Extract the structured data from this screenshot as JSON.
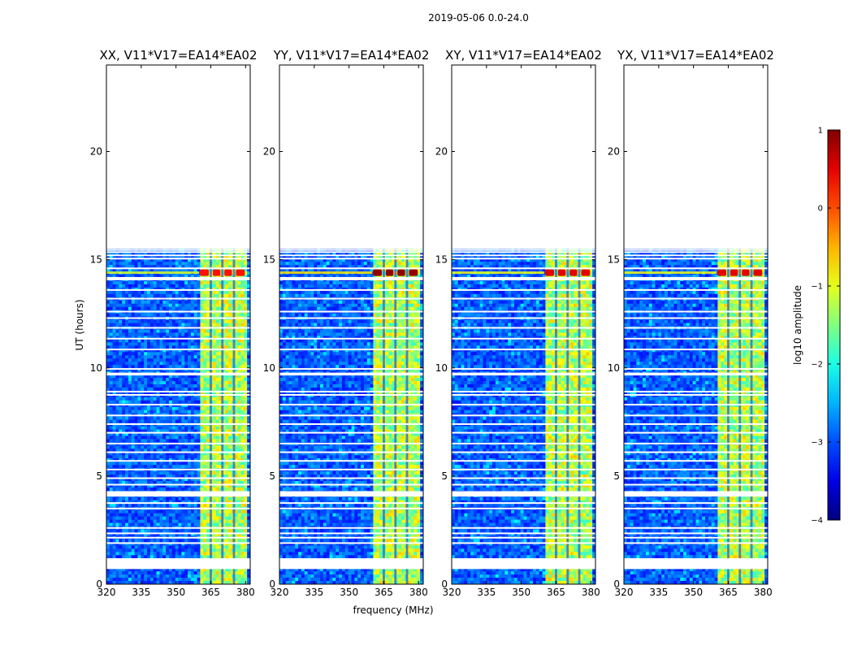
{
  "suptitle": "2019-05-06 0.0-24.0",
  "chart_data": {
    "type": "heatmap",
    "xlabel": "frequency (MHz)",
    "ylabel": "UT (hours)",
    "xlim": [
      320,
      382
    ],
    "ylim": [
      0,
      24
    ],
    "xticks": [
      "320",
      "335",
      "350",
      "365",
      "380"
    ],
    "xtick_values": [
      320,
      335,
      350,
      365,
      380
    ],
    "yticks": [
      "0",
      "5",
      "10",
      "15",
      "20"
    ],
    "ytick_values": [
      0,
      5,
      10,
      15,
      20
    ],
    "data_end_hour": 15.5,
    "gaps_hours": [
      [
        0.7,
        1.2
      ],
      [
        4.05,
        4.3
      ],
      [
        9.65,
        9.78
      ],
      [
        14.05,
        14.2
      ]
    ],
    "flag_hours": [
      1.9,
      2.15,
      2.35,
      2.6,
      3.5,
      3.75,
      4.6,
      4.9,
      5.3,
      5.7,
      6.1,
      6.5,
      7.0,
      7.4,
      7.8,
      8.3,
      8.75,
      8.9,
      9.95,
      10.85,
      11.35,
      11.85,
      12.3,
      12.6,
      13.2,
      13.6,
      14.6,
      15.05,
      15.2,
      15.35,
      15.45
    ],
    "rfi_band_mhz": [
      360,
      380
    ],
    "rfi_channels_mhz": [
      [
        360,
        364.5
      ],
      [
        365.5,
        369.5
      ],
      [
        370.5,
        374.5
      ],
      [
        375.5,
        380
      ]
    ],
    "rfi_burst_hour": 14.4,
    "panels": [
      {
        "title": "XX, V11*V17=EA14*EA02",
        "burst_level": 0.4
      },
      {
        "title": "YY, V11*V17=EA14*EA02",
        "burst_level": 1.0
      },
      {
        "title": "XY, V11*V17=EA14*EA02",
        "burst_level": 0.6
      },
      {
        "title": "YX, V11*V17=EA14*EA02",
        "burst_level": 0.6
      }
    ],
    "colorbar": {
      "label": "log10 amplitude",
      "range": [
        -4,
        1
      ],
      "ticks": [
        "1",
        "0",
        "−1",
        "−2",
        "−3",
        "−4"
      ],
      "tick_values": [
        1,
        0,
        -1,
        -2,
        -3,
        -4
      ],
      "colormap": "jet"
    }
  }
}
